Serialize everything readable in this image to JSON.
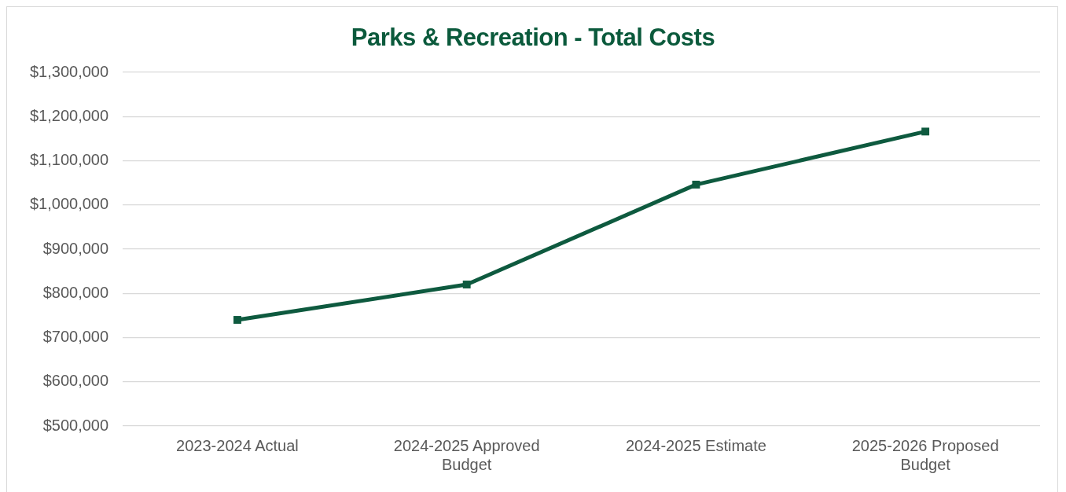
{
  "chart_data": {
    "type": "line",
    "title": "Parks & Recreation - Total Costs",
    "categories": [
      "2023-2024 Actual",
      "2024-2025 Approved Budget",
      "2024-2025 Estimate",
      "2025-2026 Proposed Budget"
    ],
    "series": [
      {
        "color": "#0e5a3f",
        "values": [
          740000,
          820000,
          1046000,
          1166000
        ]
      }
    ],
    "ylim": [
      500000,
      1300000
    ],
    "yticks": [
      {
        "value": 500000,
        "label": "$500,000"
      },
      {
        "value": 600000,
        "label": "$600,000"
      },
      {
        "value": 700000,
        "label": "$700,000"
      },
      {
        "value": 800000,
        "label": "$800,000"
      },
      {
        "value": 900000,
        "label": "$900,000"
      },
      {
        "value": 1000000,
        "label": "$1,000,000"
      },
      {
        "value": 1100000,
        "label": "$1,100,000"
      },
      {
        "value": 1200000,
        "label": "$1,200,000"
      },
      {
        "value": 1300000,
        "label": "$1,300,000"
      }
    ],
    "grid": "y",
    "legend": false,
    "marker": "square",
    "line_style": "solid"
  }
}
